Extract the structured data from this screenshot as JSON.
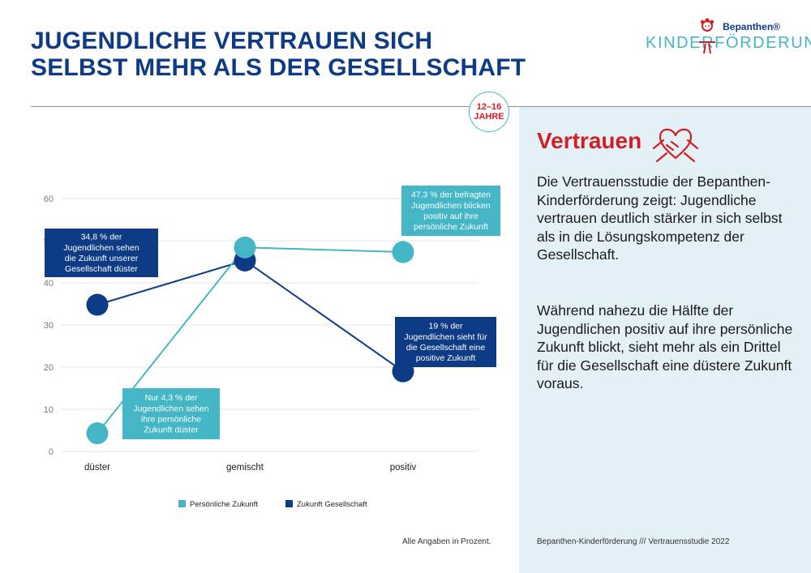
{
  "header": {
    "title_line1": "JUGENDLICHE VERTRAUEN SICH",
    "title_line2": "SELBST MEHR ALS DER GESELLSCHAFT"
  },
  "badge": {
    "line1": "12–16",
    "line2": "JAHRE"
  },
  "logo": {
    "brand": "Bepanthen®",
    "wordmark": "KINDERFÖRDERUNG"
  },
  "panel": {
    "heading": "Vertrauen",
    "paragraph1": "Die Vertrauensstudie der Bepanthen-Kinderförderung zeigt: Jugendliche vertrauen deutlich stärker in sich selbst als in die Lösungskompetenz der Gesellschaft.",
    "paragraph2": "Während nahezu die Hälfte der Jugendlichen positiv auf ihre persönliche Zukunft blickt, sieht mehr als ein Drittel für die Gesellschaft eine düstere Zukunft voraus."
  },
  "footer": {
    "note": "Alle Angaben in Prozent.",
    "source": "Bepanthen-Kinderförderung /// Vertrauensstudie 2022"
  },
  "colors": {
    "primary": "#0d3b85",
    "accent": "#44b6c6",
    "red": "#d11f26"
  },
  "chart_data": {
    "type": "line",
    "categories": [
      "düster",
      "gemischt",
      "positiv"
    ],
    "ylim": [
      0,
      60
    ],
    "yticks": [
      0,
      10,
      20,
      30,
      40,
      50,
      60
    ],
    "grid": true,
    "legend_position": "bottom",
    "series": [
      {
        "name": "Persönliche Zukunft",
        "color": "#44b6c6",
        "values": [
          4.3,
          48.4,
          47.3
        ]
      },
      {
        "name": "Zukunft Gesellschaft",
        "color": "#0d3b85",
        "values": [
          34.8,
          45.3,
          19
        ]
      }
    ],
    "annotations": [
      {
        "series": 1,
        "point": 0,
        "color": "#0d3b85",
        "lines": [
          "34,8 % der",
          "Jugendlichen sehen",
          "die Zukunft unserer",
          "Gesellschaft düster"
        ]
      },
      {
        "series": 0,
        "point": 2,
        "color": "#44b6c6",
        "lines": [
          "47,3 % der befragten",
          "Jugendlichen blicken",
          "positiv auf ihre",
          "persönliche Zukunft"
        ]
      },
      {
        "series": 1,
        "point": 2,
        "color": "#0d3b85",
        "lines": [
          "19 % der",
          "Jugendlichen sieht für",
          "die Gesellschaft eine",
          "positive Zukunft"
        ]
      },
      {
        "series": 0,
        "point": 0,
        "color": "#44b6c6",
        "lines": [
          "Nur 4,3 % der",
          "Jugendlichen sehen",
          "ihre persönliche",
          "Zukunft düster"
        ]
      }
    ]
  }
}
